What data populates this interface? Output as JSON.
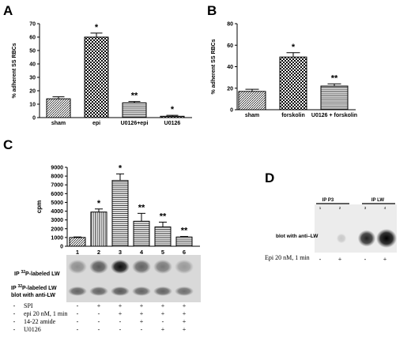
{
  "panels": {
    "A": {
      "letter": "A"
    },
    "B": {
      "letter": "B"
    },
    "C": {
      "letter": "C"
    },
    "D": {
      "letter": "D"
    }
  },
  "chart_data": [
    {
      "id": "A",
      "type": "bar",
      "ylabel": "% adherent SS RBCs",
      "ylim": [
        0,
        70
      ],
      "yticks": [
        0,
        10,
        20,
        30,
        40,
        50,
        60,
        70
      ],
      "categories": [
        "sham",
        "epi",
        "U0126+epi",
        "U0126"
      ],
      "values": [
        14,
        60,
        11,
        1
      ],
      "errors": [
        1.5,
        3,
        1,
        0.7
      ],
      "annotations": [
        "",
        "*",
        "**",
        "*"
      ],
      "patterns": [
        "diag",
        "check",
        "horiz",
        "check"
      ]
    },
    {
      "id": "B",
      "type": "bar",
      "ylabel": "% adherent SS RBCs",
      "ylim": [
        0,
        80
      ],
      "yticks": [
        0,
        20,
        40,
        60,
        80
      ],
      "categories": [
        "sham",
        "forskolin",
        "U0126 + forskolin"
      ],
      "values": [
        17,
        49,
        22
      ],
      "errors": [
        2,
        4,
        2
      ],
      "annotations": [
        "",
        "*",
        "**"
      ],
      "patterns": [
        "diag",
        "check",
        "horiz"
      ]
    },
    {
      "id": "C",
      "type": "bar",
      "ylabel": "cpm",
      "ylim": [
        0,
        9000
      ],
      "yticks": [
        0,
        1000,
        2000,
        3000,
        4000,
        5000,
        6000,
        7000,
        8000,
        9000
      ],
      "categories": [
        "1",
        "2",
        "3",
        "4",
        "5",
        "6"
      ],
      "values": [
        1000,
        3900,
        7500,
        2850,
        2200,
        1050
      ],
      "errors": [
        60,
        350,
        750,
        900,
        550,
        60
      ],
      "annotations": [
        "",
        "*",
        "*",
        "**",
        "**",
        "**"
      ],
      "patterns": [
        "diag",
        "vert",
        "horiz",
        "horiz",
        "horiz",
        "horiz"
      ]
    }
  ],
  "blot_c": {
    "label1_pre": "IP ",
    "label1_sup": "32",
    "label1_post": "P-labeled LW",
    "label2_pre": "IP ",
    "label2_sup": "32",
    "label2_post": "P-labeled LW",
    "label3": "blot with anti-LW",
    "intensity_row1": [
      0.35,
      0.6,
      0.95,
      0.55,
      0.45,
      0.3
    ],
    "intensity_row2": [
      0.55,
      0.55,
      0.6,
      0.55,
      0.55,
      0.5
    ]
  },
  "treatments": {
    "rows": [
      {
        "label": "SPI",
        "signs": [
          "-",
          "+",
          "+",
          "+",
          "+",
          "+"
        ]
      },
      {
        "label": "epi 20 nM, 1 min",
        "signs": [
          "-",
          "-",
          "+",
          "+",
          "+",
          "+"
        ]
      },
      {
        "label": "14-22 amide",
        "signs": [
          "-",
          "-",
          "-",
          "+",
          "-",
          "+"
        ]
      },
      {
        "label": "U0126",
        "signs": [
          "-",
          "-",
          "-",
          "-",
          "+",
          "+"
        ]
      }
    ]
  },
  "blot_d": {
    "ip_p3": "IP P3",
    "ip_lw": "IP LW",
    "lanes": [
      "1",
      "2",
      "3",
      "4"
    ],
    "blot_label": "blot with anti–LW",
    "epi_label": "Epi 20 nM, 1 min",
    "signs": [
      "-",
      "+",
      "-",
      "+"
    ],
    "intensity": [
      0.0,
      0.05,
      0.75,
      1.0
    ]
  }
}
